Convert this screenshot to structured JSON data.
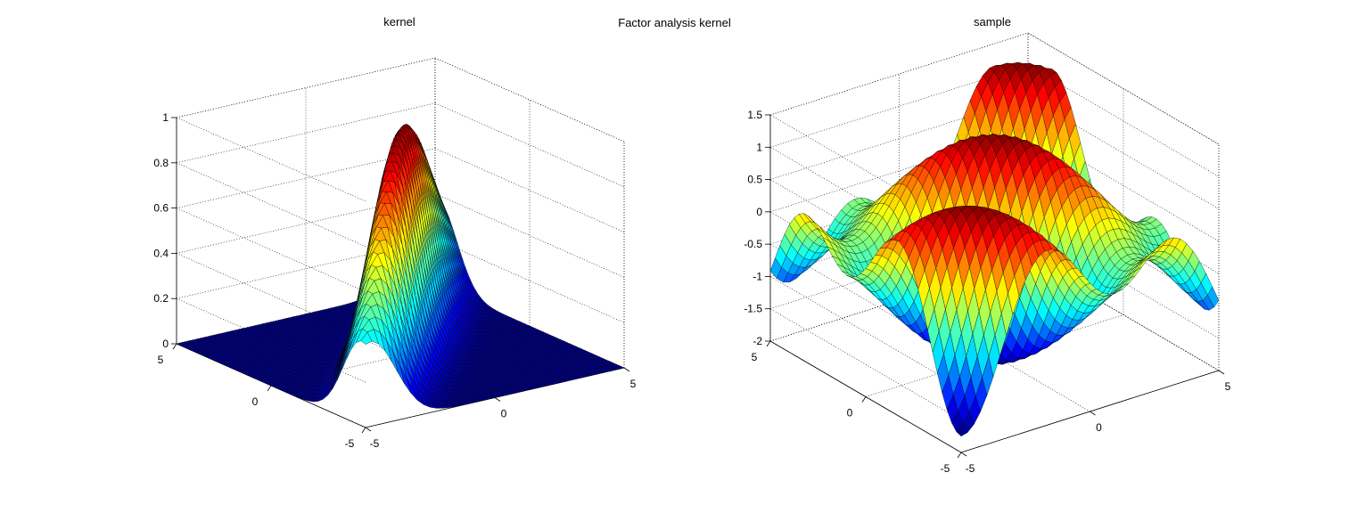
{
  "figure": {
    "title": "Factor analysis kernel"
  },
  "chart_data": [
    {
      "type": "surface",
      "title": "kernel",
      "xlabel": "",
      "ylabel": "",
      "zlabel": "",
      "xlim": [
        -5,
        5
      ],
      "ylim": [
        -5,
        5
      ],
      "zlim": [
        0,
        1
      ],
      "x_ticks": [
        -5,
        0,
        5
      ],
      "y_ticks": [
        -5,
        0,
        5
      ],
      "z_ticks": [
        0,
        0.2,
        0.4,
        0.6,
        0.8,
        1
      ],
      "grid": true,
      "colormap": "jet",
      "surface": {
        "grid_points": 41,
        "peak_height": 1,
        "description_function": "exp(-(x-y)^2/2) * exp(-(x^2+y^2)/50)"
      }
    },
    {
      "type": "surface",
      "title": "sample",
      "xlabel": "",
      "ylabel": "",
      "zlabel": "",
      "xlim": [
        -5,
        5
      ],
      "ylim": [
        -5,
        5
      ],
      "zlim": [
        -2,
        1.5
      ],
      "x_ticks": [
        -5,
        0,
        5
      ],
      "y_ticks": [
        -5,
        0,
        5
      ],
      "z_ticks": [
        -2,
        -1.5,
        -1,
        -0.5,
        0,
        0.5,
        1,
        1.5
      ],
      "grid": true,
      "colormap": "jet",
      "surface": {
        "grid_points": 41,
        "description_function": "1.5*sin(1.2*(x+y)/sqrt2 + 0.6) * cos(0.35*(x-y)/sqrt2) - 0.25"
      }
    }
  ],
  "colors": {
    "background": "#ffffff",
    "edge": "#000000",
    "axis": "#000000",
    "grid": "#000000"
  }
}
